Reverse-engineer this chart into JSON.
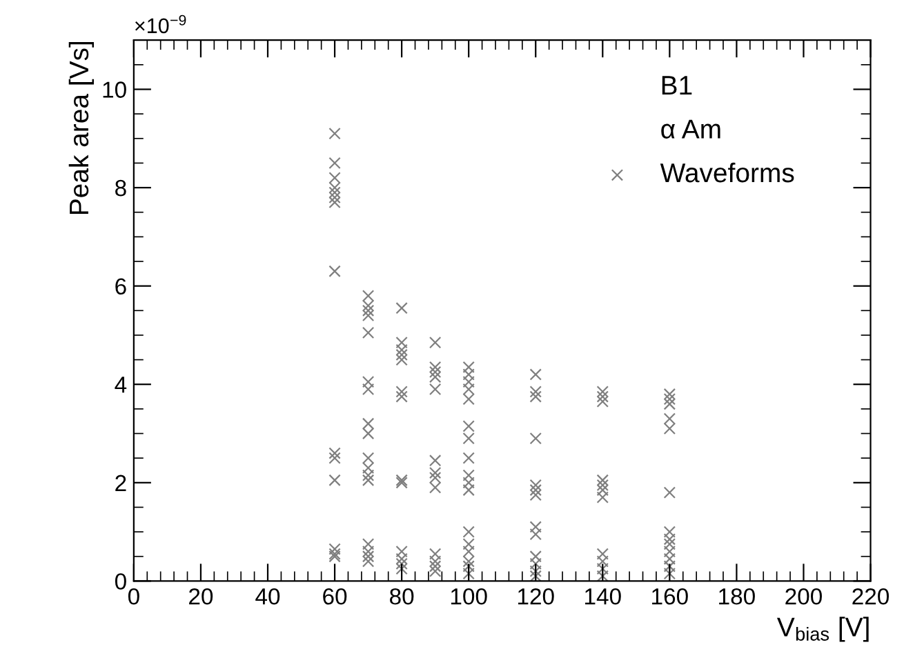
{
  "chart_data": {
    "type": "scatter",
    "xlabel": "V$_{bias}$ [V]",
    "ylabel": "Peak area [Vs]",
    "annotations": [
      "×10$^{−9}$",
      "B1",
      "α Am"
    ],
    "xlim": [
      0,
      220
    ],
    "xticks": [
      0,
      20,
      40,
      60,
      80,
      100,
      120,
      140,
      160,
      180,
      200,
      220
    ],
    "ylim": [
      0,
      11
    ],
    "yticks": [
      0,
      2,
      4,
      6,
      8,
      10
    ],
    "marker": "cross",
    "legend": "top right",
    "grid": false,
    "series": [
      {
        "name": "Waveforms",
        "color": "#7f7f7f",
        "x": [
          60,
          60,
          60,
          60,
          60,
          60,
          60,
          60,
          60,
          60,
          60,
          60,
          60,
          60,
          70,
          70,
          70,
          70,
          70,
          70,
          70,
          70,
          70,
          70,
          70,
          70,
          70,
          70,
          70,
          70,
          70,
          80,
          80,
          80,
          80,
          80,
          80,
          80,
          80,
          80,
          80,
          80,
          80,
          80,
          90,
          90,
          90,
          90,
          90,
          90,
          90,
          90,
          90,
          90,
          90,
          90,
          90,
          100,
          100,
          100,
          100,
          100,
          100,
          100,
          100,
          100,
          100,
          100,
          100,
          100,
          100,
          100,
          100,
          100,
          120,
          120,
          120,
          120,
          120,
          120,
          120,
          120,
          120,
          120,
          120,
          120,
          120,
          140,
          140,
          140,
          140,
          140,
          140,
          140,
          140,
          140,
          140,
          140,
          160,
          160,
          160,
          160,
          160,
          160,
          160,
          160,
          160,
          160,
          160,
          160,
          160
        ],
        "values": [
          9.1,
          8.5,
          8.2,
          8.0,
          7.9,
          7.8,
          7.7,
          6.3,
          2.6,
          2.5,
          2.05,
          0.65,
          0.55,
          0.5,
          5.8,
          5.6,
          5.5,
          5.4,
          5.05,
          4.05,
          3.9,
          3.2,
          3.0,
          2.5,
          2.3,
          2.15,
          2.05,
          0.75,
          0.6,
          0.5,
          0.4,
          5.55,
          4.85,
          4.7,
          4.6,
          4.5,
          3.85,
          3.75,
          2.05,
          2.0,
          0.6,
          0.45,
          0.35,
          0.25,
          4.85,
          4.35,
          4.25,
          4.15,
          3.9,
          2.45,
          2.2,
          2.1,
          1.9,
          0.55,
          0.4,
          0.3,
          0.2,
          4.35,
          4.2,
          4.05,
          3.9,
          3.7,
          3.15,
          2.9,
          2.5,
          2.15,
          2.0,
          1.85,
          1.0,
          0.75,
          0.6,
          0.4,
          0.3,
          0.15,
          4.2,
          3.85,
          3.75,
          2.9,
          1.95,
          1.85,
          1.75,
          1.1,
          0.95,
          0.5,
          0.35,
          0.2,
          0.1,
          3.85,
          3.75,
          3.65,
          2.05,
          1.95,
          1.85,
          1.7,
          0.55,
          0.4,
          0.25,
          0.1,
          3.8,
          3.7,
          3.6,
          3.3,
          3.1,
          1.8,
          1.0,
          0.85,
          0.75,
          0.6,
          0.45,
          0.3,
          0.15
        ]
      }
    ]
  }
}
